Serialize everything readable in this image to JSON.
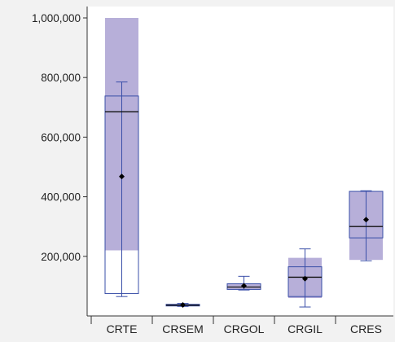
{
  "chart_data": {
    "type": "box",
    "title": "",
    "xlabel": "",
    "ylabel": "",
    "ylim": [
      0,
      1000000
    ],
    "yticks": [
      200000,
      400000,
      600000,
      800000,
      1000000
    ],
    "ytick_labels": [
      "200,000",
      "400,000",
      "600,000",
      "800,000",
      "1,000,000"
    ],
    "categories": [
      "CRTE",
      "CRSEM",
      "CRGOL",
      "CRGIL",
      "CRES"
    ],
    "grid": false,
    "legend": "none",
    "boxes": [
      {
        "category": "CRTE",
        "whisker_low": 65000,
        "q1": 75000,
        "median": 685000,
        "q3": 738000,
        "whisker_high": 785000,
        "mean": 468000,
        "band_low": 220000,
        "band_high": 1000000
      },
      {
        "category": "CRSEM",
        "whisker_low": 32000,
        "q1": 34000,
        "median": 36000,
        "q3": 39000,
        "whisker_high": 42000,
        "mean": 37000,
        "band_low": 34000,
        "band_high": 39000
      },
      {
        "category": "CRGOL",
        "whisker_low": 87000,
        "q1": 89000,
        "median": 97000,
        "q3": 108000,
        "whisker_high": 133000,
        "mean": 101000,
        "band_low": 89000,
        "band_high": 108000
      },
      {
        "category": "CRGIL",
        "whisker_low": 30000,
        "q1": 65000,
        "median": 130000,
        "q3": 165000,
        "whisker_high": 225000,
        "mean": 125000,
        "band_low": 60000,
        "band_high": 195000
      },
      {
        "category": "CRES",
        "whisker_low": 185000,
        "q1": 262000,
        "median": 300000,
        "q3": 418000,
        "whisker_high": 420000,
        "mean": 323000,
        "band_low": 188000,
        "band_high": 418000
      }
    ],
    "colors": {
      "band": "#b7afd9",
      "box_stroke": "#3a4fa8",
      "median": "#111111",
      "mean_marker": "#000000",
      "axis": "#333333",
      "plot_bg": "#ffffff",
      "page_bg": "#f2f2f2"
    }
  }
}
